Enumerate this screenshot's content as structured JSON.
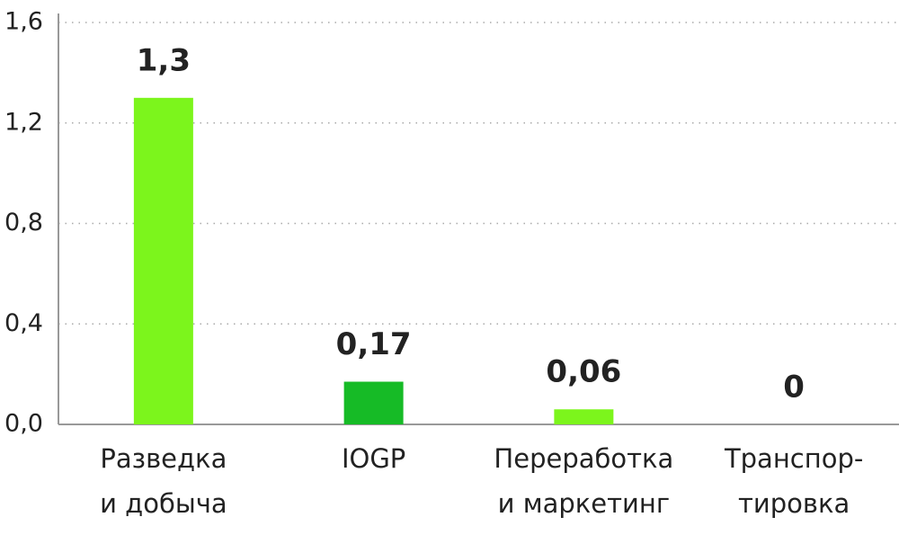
{
  "chart_data": {
    "type": "bar",
    "categories": [
      [
        "Разведка",
        "и добыча"
      ],
      [
        "IOGP"
      ],
      [
        "Переработка",
        "и маркетинг"
      ],
      [
        "Транспор-",
        "тировка"
      ]
    ],
    "values": [
      1.3,
      0.17,
      0.06,
      0
    ],
    "value_labels": [
      "1,3",
      "0,17",
      "0,06",
      "0"
    ],
    "colors": [
      "#7cf51c",
      "#16bb26",
      "#7cf51c",
      "#7cf51c"
    ],
    "ylim": [
      0,
      1.6
    ],
    "yticks": [
      {
        "value": 0,
        "label": "0,0"
      },
      {
        "value": 0.4,
        "label": "0,4"
      },
      {
        "value": 0.8,
        "label": "0,8"
      },
      {
        "value": 1.2,
        "label": "1,2"
      },
      {
        "value": 1.6,
        "label": "1,6"
      }
    ],
    "grid": true
  }
}
